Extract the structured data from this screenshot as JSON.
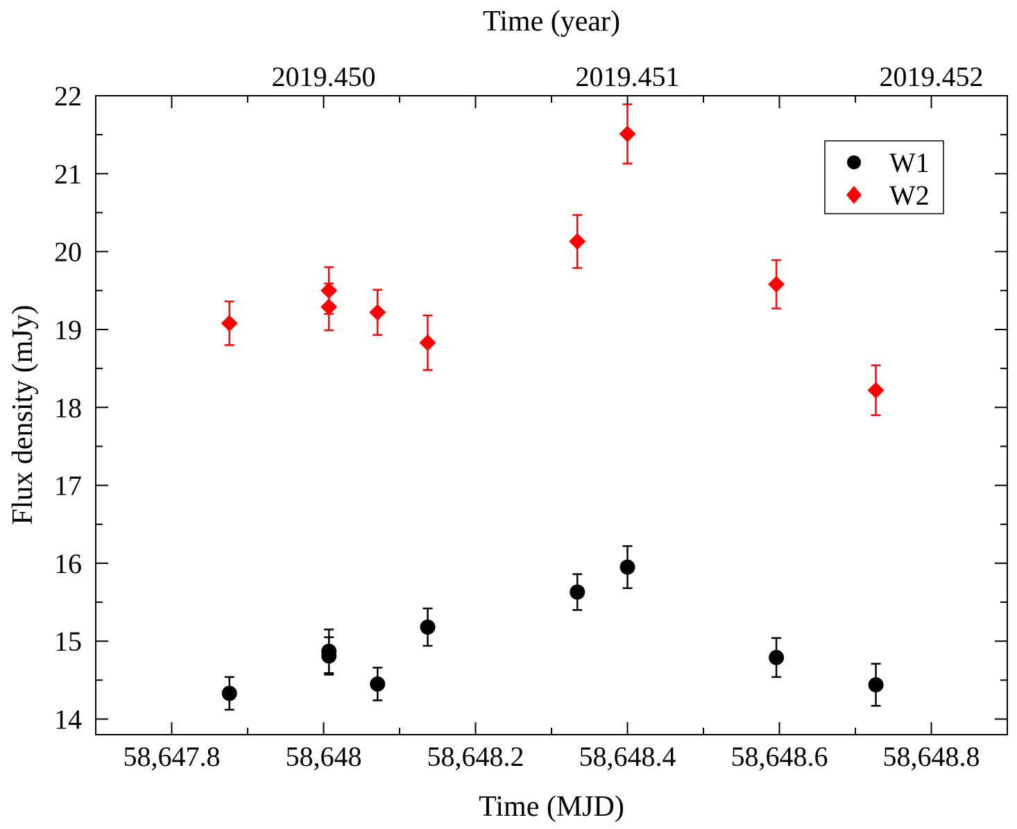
{
  "chart_data": {
    "type": "scatter",
    "xlabel": "Time (MJD)",
    "top_xlabel": "Time (year)",
    "ylabel": "Flux density (mJy)",
    "xlim": [
      58647.7,
      58648.9
    ],
    "ylim": [
      13.8,
      22.0
    ],
    "x_ticks": [
      58647.8,
      58648.0,
      58648.2,
      58648.4,
      58648.6,
      58648.8
    ],
    "x_tick_labels": [
      "58,647.8",
      "58,648",
      "58,648.2",
      "58,648.4",
      "58,648.6",
      "58,648.8"
    ],
    "y_ticks": [
      14,
      15,
      16,
      17,
      18,
      19,
      20,
      21,
      22
    ],
    "y_tick_labels": [
      "14",
      "15",
      "16",
      "17",
      "18",
      "19",
      "20",
      "21",
      "22"
    ],
    "top_ticks": [
      58648.0,
      58648.4,
      58648.8
    ],
    "top_tick_labels": [
      "2019.450",
      "2019.451",
      "2019.452"
    ],
    "legend_position": "top-right",
    "series": [
      {
        "name": "W1",
        "color": "#000000",
        "marker": "circle",
        "points": [
          {
            "x": 58647.876,
            "y": 14.33,
            "err": 0.21
          },
          {
            "x": 58648.007,
            "y": 14.81,
            "err": 0.24
          },
          {
            "x": 58648.007,
            "y": 14.87,
            "err": 0.28
          },
          {
            "x": 58648.071,
            "y": 14.45,
            "err": 0.21
          },
          {
            "x": 58648.137,
            "y": 15.18,
            "err": 0.24
          },
          {
            "x": 58648.334,
            "y": 15.63,
            "err": 0.23
          },
          {
            "x": 58648.4,
            "y": 15.95,
            "err": 0.27
          },
          {
            "x": 58648.596,
            "y": 14.79,
            "err": 0.25
          },
          {
            "x": 58648.727,
            "y": 14.44,
            "err": 0.27
          }
        ]
      },
      {
        "name": "W2",
        "color": "#ff0000",
        "marker": "diamond",
        "points": [
          {
            "x": 58647.876,
            "y": 19.08,
            "err": 0.28
          },
          {
            "x": 58648.007,
            "y": 19.5,
            "err": 0.3
          },
          {
            "x": 58648.007,
            "y": 19.29,
            "err": 0.3
          },
          {
            "x": 58648.071,
            "y": 19.22,
            "err": 0.29
          },
          {
            "x": 58648.137,
            "y": 18.83,
            "err": 0.35
          },
          {
            "x": 58648.334,
            "y": 20.13,
            "err": 0.34
          },
          {
            "x": 58648.4,
            "y": 21.51,
            "err": 0.38
          },
          {
            "x": 58648.596,
            "y": 19.58,
            "err": 0.31
          },
          {
            "x": 58648.727,
            "y": 18.22,
            "err": 0.32
          }
        ]
      }
    ]
  }
}
